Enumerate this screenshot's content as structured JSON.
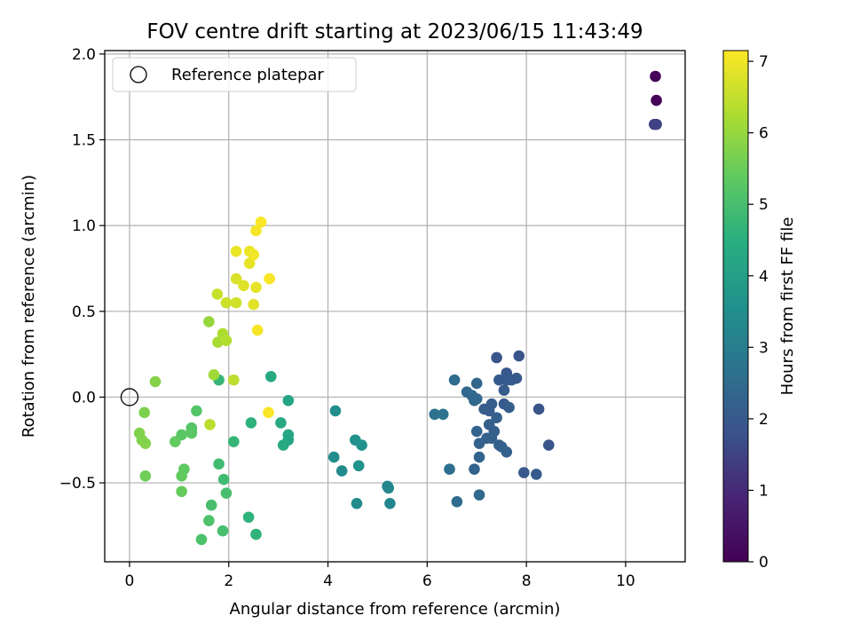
{
  "chart_data": {
    "type": "scatter",
    "title": "FOV centre drift starting at 2023/06/15 11:43:49",
    "xlabel": "Angular distance from reference (arcmin)",
    "ylabel": "Rotation from reference (arcmin)",
    "xlim": [
      -0.5,
      11.2
    ],
    "ylim": [
      -0.96,
      2.02
    ],
    "xticks": [
      0,
      2,
      4,
      6,
      8,
      10
    ],
    "yticks": [
      -0.5,
      0.0,
      0.5,
      1.0,
      1.5,
      2.0
    ],
    "xtick_labels": [
      "0",
      "2",
      "4",
      "6",
      "8",
      "10"
    ],
    "ytick_labels": [
      "−0.5",
      "0.0",
      "0.5",
      "1.0",
      "1.5",
      "2.0"
    ],
    "grid": true,
    "legend": {
      "placement": "top-left",
      "entries": [
        "Reference platepar"
      ]
    },
    "reference_point": {
      "x": 0,
      "y": 0
    },
    "colorbar": {
      "label": "Hours from first FF file",
      "range": [
        0,
        7.15
      ],
      "ticks": [
        0,
        1,
        2,
        3,
        4,
        5,
        6,
        7
      ],
      "tick_labels": [
        "0",
        "1",
        "2",
        "3",
        "4",
        "5",
        "6",
        "7"
      ],
      "colormap": "viridis"
    },
    "points": [
      {
        "x": 10.6,
        "y": 1.87,
        "h": 0.05
      },
      {
        "x": 10.62,
        "y": 1.73,
        "h": 0.1
      },
      {
        "x": 10.58,
        "y": 1.59,
        "h": 1.4
      },
      {
        "x": 10.62,
        "y": 1.59,
        "h": 1.5
      },
      {
        "x": 7.4,
        "y": 0.23,
        "h": 1.9
      },
      {
        "x": 7.85,
        "y": 0.24,
        "h": 1.9
      },
      {
        "x": 7.6,
        "y": 0.14,
        "h": 1.95
      },
      {
        "x": 7.45,
        "y": 0.1,
        "h": 2.0
      },
      {
        "x": 7.6,
        "y": 0.1,
        "h": 2.0
      },
      {
        "x": 7.7,
        "y": 0.1,
        "h": 2.0
      },
      {
        "x": 7.8,
        "y": 0.11,
        "h": 2.0
      },
      {
        "x": 7.55,
        "y": 0.04,
        "h": 2.05
      },
      {
        "x": 7.55,
        "y": -0.04,
        "h": 2.05
      },
      {
        "x": 7.65,
        "y": -0.06,
        "h": 2.1
      },
      {
        "x": 7.3,
        "y": -0.04,
        "h": 2.1
      },
      {
        "x": 7.15,
        "y": -0.07,
        "h": 2.1
      },
      {
        "x": 7.25,
        "y": -0.08,
        "h": 2.1
      },
      {
        "x": 7.4,
        "y": -0.12,
        "h": 2.15
      },
      {
        "x": 7.25,
        "y": -0.16,
        "h": 2.15
      },
      {
        "x": 7.35,
        "y": -0.2,
        "h": 2.15
      },
      {
        "x": 7.2,
        "y": -0.24,
        "h": 2.2
      },
      {
        "x": 7.3,
        "y": -0.24,
        "h": 2.2
      },
      {
        "x": 7.45,
        "y": -0.28,
        "h": 2.2
      },
      {
        "x": 7.5,
        "y": -0.29,
        "h": 2.2
      },
      {
        "x": 7.6,
        "y": -0.32,
        "h": 2.2
      },
      {
        "x": 7.0,
        "y": -0.2,
        "h": 2.25
      },
      {
        "x": 7.05,
        "y": -0.27,
        "h": 2.25
      },
      {
        "x": 7.05,
        "y": -0.35,
        "h": 2.3
      },
      {
        "x": 6.95,
        "y": -0.42,
        "h": 2.3
      },
      {
        "x": 6.95,
        "y": -0.02,
        "h": 2.35
      },
      {
        "x": 7.0,
        "y": 0.08,
        "h": 2.35
      },
      {
        "x": 6.8,
        "y": 0.03,
        "h": 2.4
      },
      {
        "x": 6.9,
        "y": 0.01,
        "h": 2.4
      },
      {
        "x": 7.0,
        "y": -0.01,
        "h": 2.4
      },
      {
        "x": 6.55,
        "y": 0.1,
        "h": 2.5
      },
      {
        "x": 8.25,
        "y": -0.07,
        "h": 1.9
      },
      {
        "x": 8.45,
        "y": -0.28,
        "h": 1.9
      },
      {
        "x": 7.95,
        "y": -0.44,
        "h": 1.95
      },
      {
        "x": 8.2,
        "y": -0.45,
        "h": 2.0
      },
      {
        "x": 7.05,
        "y": -0.57,
        "h": 2.4
      },
      {
        "x": 6.6,
        "y": -0.61,
        "h": 2.5
      },
      {
        "x": 6.45,
        "y": -0.42,
        "h": 2.6
      },
      {
        "x": 6.15,
        "y": -0.1,
        "h": 2.65
      },
      {
        "x": 6.32,
        "y": -0.1,
        "h": 2.7
      },
      {
        "x": 4.15,
        "y": -0.08,
        "h": 3.5
      },
      {
        "x": 4.12,
        "y": -0.35,
        "h": 3.5
      },
      {
        "x": 4.28,
        "y": -0.43,
        "h": 3.4
      },
      {
        "x": 4.55,
        "y": -0.25,
        "h": 3.6
      },
      {
        "x": 4.68,
        "y": -0.28,
        "h": 3.6
      },
      {
        "x": 4.62,
        "y": -0.4,
        "h": 3.6
      },
      {
        "x": 4.58,
        "y": -0.62,
        "h": 3.4
      },
      {
        "x": 5.2,
        "y": -0.52,
        "h": 3.2
      },
      {
        "x": 5.22,
        "y": -0.53,
        "h": 3.25
      },
      {
        "x": 5.25,
        "y": -0.62,
        "h": 3.3
      },
      {
        "x": 2.85,
        "y": 0.12,
        "h": 4.3
      },
      {
        "x": 3.2,
        "y": -0.02,
        "h": 4.2
      },
      {
        "x": 3.05,
        "y": -0.15,
        "h": 4.3
      },
      {
        "x": 3.2,
        "y": -0.22,
        "h": 4.2
      },
      {
        "x": 3.2,
        "y": -0.25,
        "h": 4.2
      },
      {
        "x": 3.1,
        "y": -0.28,
        "h": 4.3
      },
      {
        "x": 2.45,
        "y": -0.15,
        "h": 4.6
      },
      {
        "x": 2.1,
        "y": -0.26,
        "h": 4.7
      },
      {
        "x": 2.4,
        "y": -0.7,
        "h": 4.6
      },
      {
        "x": 2.55,
        "y": -0.8,
        "h": 4.6
      },
      {
        "x": 1.8,
        "y": 0.1,
        "h": 4.7
      },
      {
        "x": 1.8,
        "y": -0.39,
        "h": 4.9
      },
      {
        "x": 1.9,
        "y": -0.48,
        "h": 4.9
      },
      {
        "x": 1.95,
        "y": -0.56,
        "h": 5.0
      },
      {
        "x": 1.65,
        "y": -0.63,
        "h": 5.0
      },
      {
        "x": 1.6,
        "y": -0.72,
        "h": 5.1
      },
      {
        "x": 1.88,
        "y": -0.78,
        "h": 5.0
      },
      {
        "x": 1.45,
        "y": -0.83,
        "h": 5.1
      },
      {
        "x": 1.35,
        "y": -0.08,
        "h": 5.2
      },
      {
        "x": 1.25,
        "y": -0.18,
        "h": 5.2
      },
      {
        "x": 1.25,
        "y": -0.2,
        "h": 5.25
      },
      {
        "x": 1.05,
        "y": -0.22,
        "h": 5.3
      },
      {
        "x": 1.25,
        "y": -0.21,
        "h": 5.3
      },
      {
        "x": 0.92,
        "y": -0.26,
        "h": 5.4
      },
      {
        "x": 1.1,
        "y": -0.42,
        "h": 5.35
      },
      {
        "x": 1.05,
        "y": -0.46,
        "h": 5.4
      },
      {
        "x": 1.05,
        "y": -0.55,
        "h": 5.45
      },
      {
        "x": 0.32,
        "y": -0.46,
        "h": 5.55
      },
      {
        "x": 0.3,
        "y": -0.09,
        "h": 5.7
      },
      {
        "x": 0.2,
        "y": -0.21,
        "h": 5.75
      },
      {
        "x": 0.25,
        "y": -0.25,
        "h": 5.75
      },
      {
        "x": 0.32,
        "y": -0.27,
        "h": 5.8
      },
      {
        "x": 0.52,
        "y": 0.09,
        "h": 5.8
      },
      {
        "x": 1.6,
        "y": 0.44,
        "h": 6.0
      },
      {
        "x": 1.7,
        "y": 0.13,
        "h": 6.1
      },
      {
        "x": 1.78,
        "y": 0.32,
        "h": 6.2
      },
      {
        "x": 1.88,
        "y": 0.37,
        "h": 6.25
      },
      {
        "x": 1.95,
        "y": 0.33,
        "h": 6.3
      },
      {
        "x": 1.62,
        "y": -0.16,
        "h": 6.4
      },
      {
        "x": 2.1,
        "y": 0.1,
        "h": 6.45
      },
      {
        "x": 1.77,
        "y": 0.6,
        "h": 6.55
      },
      {
        "x": 1.95,
        "y": 0.55,
        "h": 6.6
      },
      {
        "x": 2.15,
        "y": 0.55,
        "h": 6.65
      },
      {
        "x": 2.15,
        "y": 0.69,
        "h": 6.75
      },
      {
        "x": 2.3,
        "y": 0.65,
        "h": 6.8
      },
      {
        "x": 2.5,
        "y": 0.54,
        "h": 6.85
      },
      {
        "x": 2.55,
        "y": 0.64,
        "h": 6.9
      },
      {
        "x": 2.42,
        "y": 0.78,
        "h": 6.9
      },
      {
        "x": 2.15,
        "y": 0.85,
        "h": 6.95
      },
      {
        "x": 2.42,
        "y": 0.85,
        "h": 6.95
      },
      {
        "x": 2.5,
        "y": 0.83,
        "h": 7.0
      },
      {
        "x": 2.55,
        "y": 0.97,
        "h": 7.05
      },
      {
        "x": 2.65,
        "y": 1.02,
        "h": 7.1
      },
      {
        "x": 2.58,
        "y": 0.39,
        "h": 7.05
      },
      {
        "x": 2.82,
        "y": 0.69,
        "h": 7.1
      },
      {
        "x": 2.8,
        "y": -0.09,
        "h": 7.1
      }
    ]
  }
}
